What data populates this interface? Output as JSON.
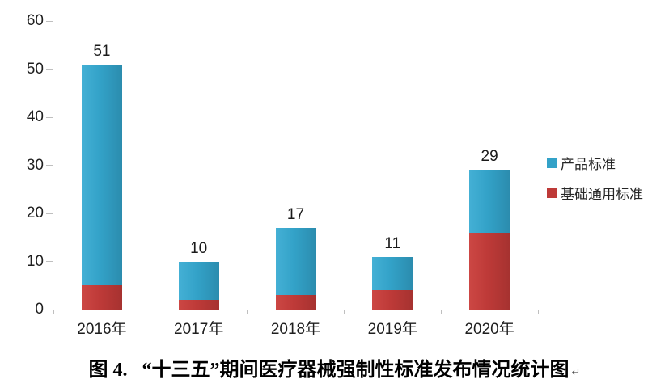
{
  "chart_data": {
    "type": "bar",
    "stacked": true,
    "categories": [
      "2016年",
      "2017年",
      "2018年",
      "2019年",
      "2020年"
    ],
    "series": [
      {
        "id": "product-standard",
        "name": "产品标准",
        "color": "#33A2C8",
        "color_light": "#44B0D5",
        "color_dark": "#2B8CAE",
        "values": [
          46,
          8,
          14,
          7,
          13
        ]
      },
      {
        "id": "basic-general-standard",
        "name": "基础通用标准",
        "color": "#BE3A38",
        "color_light": "#CC4744",
        "color_dark": "#A63230",
        "values": [
          5,
          2,
          3,
          4,
          16
        ]
      }
    ],
    "totals": [
      51,
      10,
      17,
      11,
      29
    ],
    "y_axis": {
      "min": 0,
      "max": 60,
      "ticks": [
        0,
        10,
        20,
        30,
        40,
        50,
        60
      ]
    },
    "grid": false,
    "legend_position": "right",
    "axis_color": "#BFBFBF",
    "label_color": "#1F1F1F"
  },
  "caption": {
    "figure_label": "图 4.",
    "text": "“十三五”期间医疗器械强制性标准发布情况统计图",
    "paragraph_mark": "↵"
  }
}
